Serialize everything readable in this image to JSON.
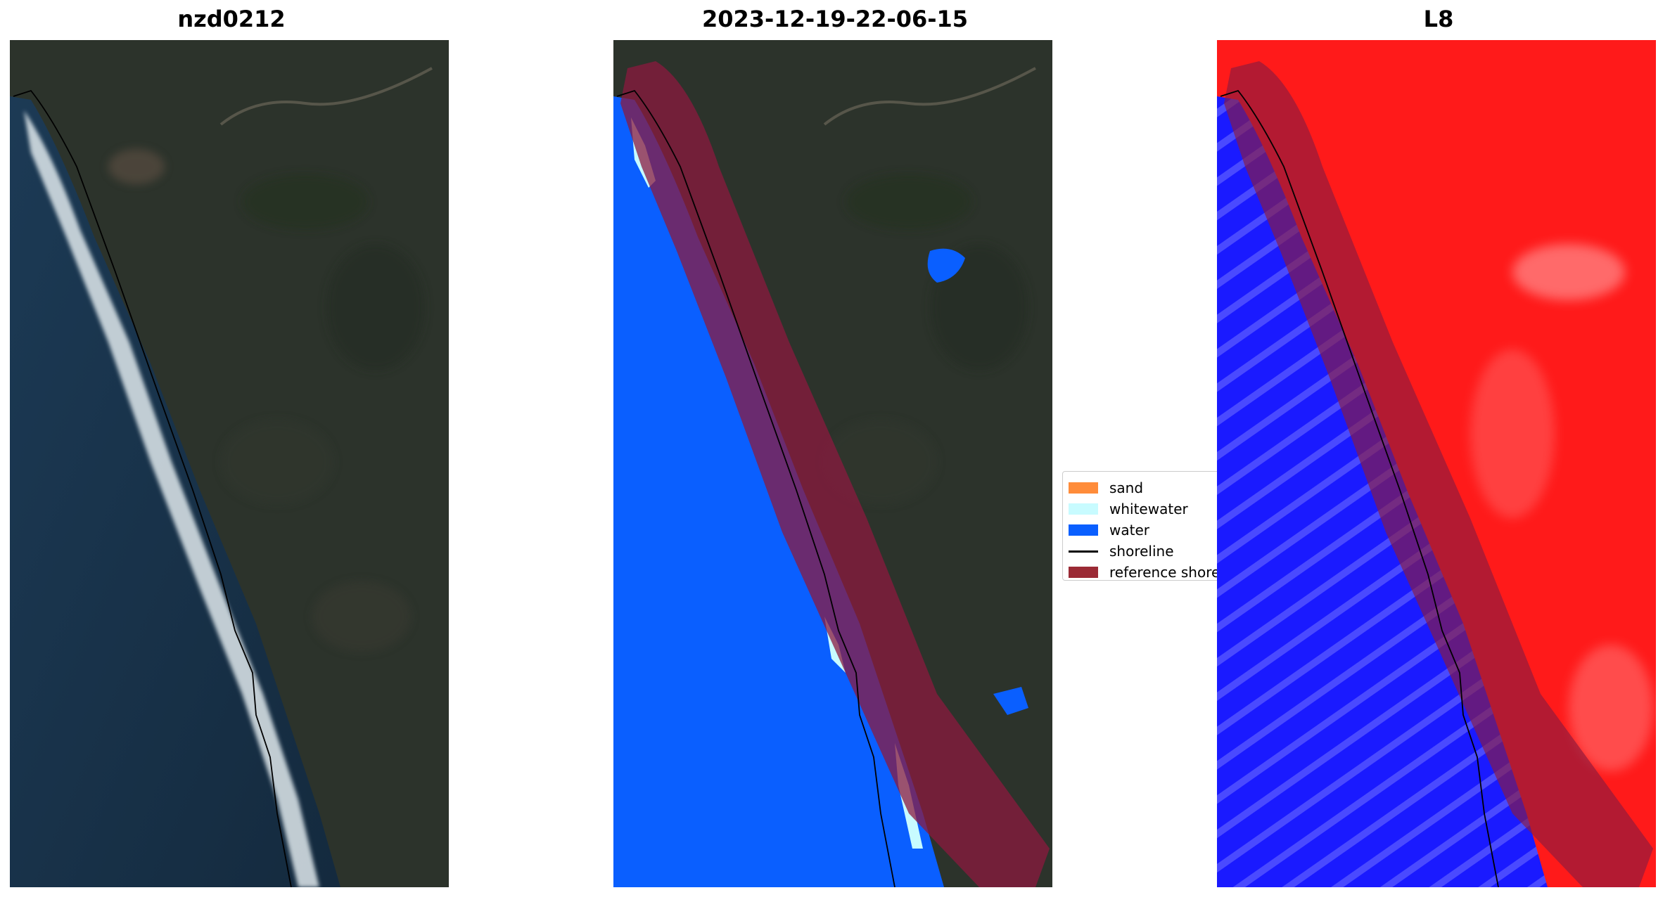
{
  "panels": [
    {
      "title": "nzd0212",
      "kind": "rgb"
    },
    {
      "title": "2023-12-19-22-06-15",
      "kind": "classified"
    },
    {
      "title": "L8",
      "kind": "index"
    }
  ],
  "legend": {
    "items": [
      {
        "label": "sand",
        "color": "#ff8c3a",
        "type": "patch"
      },
      {
        "label": "whitewater",
        "color": "#c8fbff",
        "type": "patch"
      },
      {
        "label": "water",
        "color": "#0a5fff",
        "type": "patch"
      },
      {
        "label": "shoreline",
        "color": "#000000",
        "type": "line"
      },
      {
        "label": "reference shoreline buffer",
        "color": "#9b2a35",
        "type": "patch"
      }
    ]
  },
  "colors": {
    "sea": "#17304a",
    "land": "#2c332b",
    "surf": "#dfe8ec",
    "water_class": "#0a5fff",
    "whitewater_class": "#c8fbff",
    "buffer": "#8b1a3f",
    "index_land": "#ff1a1a",
    "index_water": "#1a1aff"
  }
}
